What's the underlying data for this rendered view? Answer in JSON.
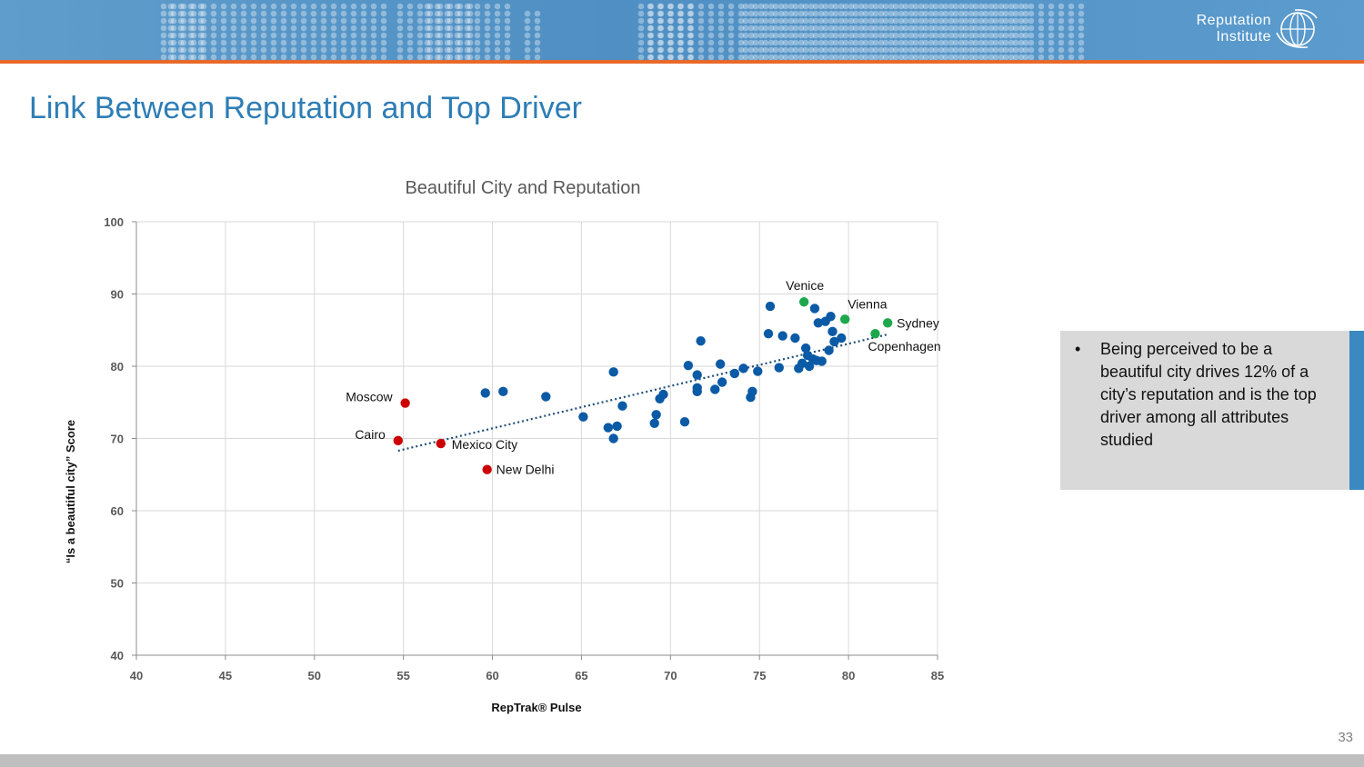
{
  "header": {
    "logo_line1": "Reputation",
    "logo_line2": "Institute",
    "accent_color": "#e8692a",
    "band_color": "#5b9bcd"
  },
  "page_title": "Link Between Reputation and Top Driver",
  "callout": {
    "bullet_glyph": "•",
    "text": "Being perceived to be a beautiful city drives 12% of a city’s reputation and is the top driver among all attributes studied"
  },
  "page_number": "33",
  "chart_data": {
    "type": "scatter",
    "title": "Beautiful City and Reputation",
    "xlabel": "RepTrak® Pulse",
    "ylabel": "“Is a beautiful city” Score",
    "xlim": [
      40,
      85
    ],
    "ylim": [
      40,
      100
    ],
    "x_ticks": [
      40,
      45,
      50,
      55,
      60,
      65,
      70,
      75,
      80,
      85
    ],
    "y_ticks": [
      40,
      50,
      60,
      70,
      80,
      90,
      100
    ],
    "grid": true,
    "colors": {
      "default": "#0b5aa6",
      "low": "#cc0000",
      "high": "#1ea84c",
      "trend": "#1f4e79"
    },
    "trendline": {
      "style": "dotted",
      "x": [
        54.7,
        82.2
      ],
      "y": [
        68.3,
        84.4
      ]
    },
    "labeled_points": [
      {
        "label": "Moscow",
        "x": 55.1,
        "y": 74.9,
        "group": "low",
        "label_side": "left"
      },
      {
        "label": "Cairo",
        "x": 54.7,
        "y": 69.7,
        "group": "low",
        "label_side": "left"
      },
      {
        "label": "Mexico City",
        "x": 57.1,
        "y": 69.3,
        "group": "low",
        "label_side": "right-below"
      },
      {
        "label": "New Delhi",
        "x": 59.7,
        "y": 65.7,
        "group": "low",
        "label_side": "right"
      },
      {
        "label": "Venice",
        "x": 77.5,
        "y": 88.9,
        "group": "high",
        "label_side": "above"
      },
      {
        "label": "Vienna",
        "x": 79.8,
        "y": 86.5,
        "group": "high",
        "label_side": "above-right"
      },
      {
        "label": "Sydney",
        "x": 82.2,
        "y": 86.0,
        "group": "high",
        "label_side": "right"
      },
      {
        "label": "Copenhagen",
        "x": 81.5,
        "y": 84.5,
        "group": "high",
        "label_side": "below-right"
      }
    ],
    "points": [
      [
        59.6,
        76.3
      ],
      [
        60.6,
        76.5
      ],
      [
        63.0,
        75.8
      ],
      [
        65.1,
        73.0
      ],
      [
        66.5,
        71.5
      ],
      [
        66.8,
        70.0
      ],
      [
        67.0,
        71.7
      ],
      [
        66.8,
        79.2
      ],
      [
        67.3,
        74.5
      ],
      [
        69.1,
        72.1
      ],
      [
        69.2,
        73.3
      ],
      [
        69.4,
        75.5
      ],
      [
        69.6,
        76.1
      ],
      [
        70.8,
        72.3
      ],
      [
        71.0,
        80.1
      ],
      [
        71.5,
        78.8
      ],
      [
        71.5,
        77.0
      ],
      [
        71.5,
        76.5
      ],
      [
        71.7,
        83.5
      ],
      [
        72.5,
        76.8
      ],
      [
        72.8,
        80.3
      ],
      [
        72.9,
        77.8
      ],
      [
        73.6,
        79.0
      ],
      [
        74.1,
        79.7
      ],
      [
        74.5,
        75.7
      ],
      [
        74.6,
        76.5
      ],
      [
        74.9,
        79.3
      ],
      [
        75.5,
        84.5
      ],
      [
        75.6,
        88.3
      ],
      [
        76.1,
        79.8
      ],
      [
        76.3,
        84.2
      ],
      [
        77.0,
        83.9
      ],
      [
        77.2,
        79.7
      ],
      [
        77.4,
        80.4
      ],
      [
        77.6,
        82.5
      ],
      [
        77.7,
        81.5
      ],
      [
        77.8,
        80.0
      ],
      [
        78.0,
        81.0
      ],
      [
        78.1,
        88.0
      ],
      [
        78.2,
        80.8
      ],
      [
        78.3,
        86.0
      ],
      [
        78.5,
        80.7
      ],
      [
        78.7,
        86.2
      ],
      [
        78.9,
        82.2
      ],
      [
        79.0,
        86.9
      ],
      [
        79.1,
        84.8
      ],
      [
        79.2,
        83.4
      ],
      [
        79.6,
        83.9
      ]
    ]
  }
}
